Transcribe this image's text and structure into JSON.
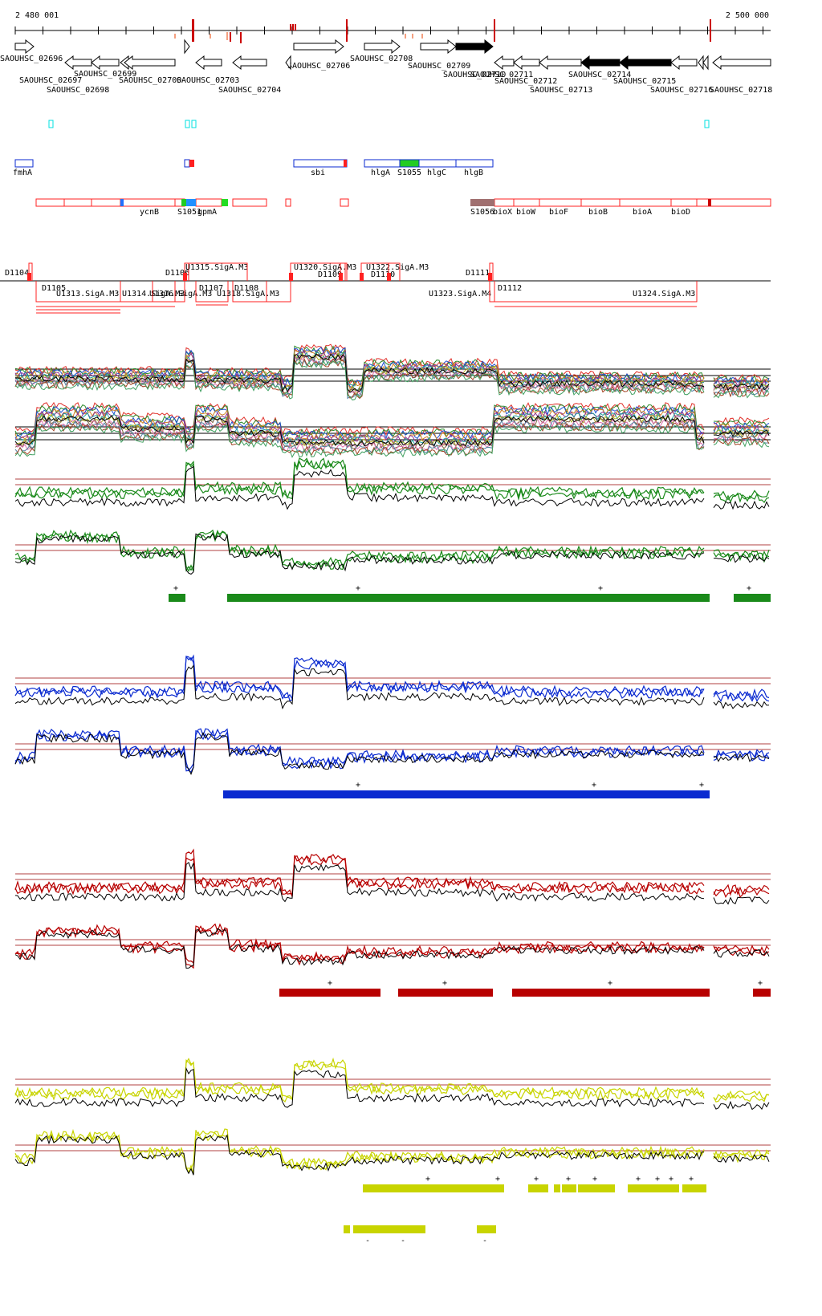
{
  "scale": {
    "start_label": "2 480 001",
    "end_label": "2 500 000"
  },
  "genes": [
    {
      "label": "SAOUHSC_02696",
      "strand": "+",
      "fill": "none"
    },
    {
      "label": "SAOUHSC_02697",
      "strand": "-",
      "fill": "none"
    },
    {
      "label": "SAOUHSC_02698",
      "strand": "-",
      "fill": "none"
    },
    {
      "label": "SAOUHSC_02699",
      "strand": "-",
      "fill": "none"
    },
    {
      "label": "SAOUHSC_02700",
      "strand": "-",
      "fill": "none"
    },
    {
      "label": "SAOUHSC_02703",
      "strand": "-",
      "fill": "none"
    },
    {
      "label": "SAOUHSC_02704",
      "strand": "-",
      "fill": "none"
    },
    {
      "label": "SAOUHSC_02706",
      "strand": "+",
      "fill": "none"
    },
    {
      "label": "SAOUHSC_02708",
      "strand": "+",
      "fill": "none"
    },
    {
      "label": "SAOUHSC_02709",
      "strand": "+",
      "fill": "none"
    },
    {
      "label": "SAOUHSC_02710",
      "strand": "+",
      "fill": "black"
    },
    {
      "label": "SAOUHSC_02711",
      "strand": "-",
      "fill": "none"
    },
    {
      "label": "SAOUHSC_02712",
      "strand": "-",
      "fill": "none"
    },
    {
      "label": "SAOUHSC_02713",
      "strand": "-",
      "fill": "none"
    },
    {
      "label": "SAOUHSC_02714",
      "strand": "-",
      "fill": "black"
    },
    {
      "label": "SAOUHSC_02715",
      "strand": "-",
      "fill": "black"
    },
    {
      "label": "SAOUHSC_02716",
      "strand": "-",
      "fill": "none"
    },
    {
      "label": "SAOUHSC_02718",
      "strand": "-",
      "fill": "none"
    }
  ],
  "blue_features": [
    {
      "label": "fmhA"
    },
    {
      "label": "sbi"
    },
    {
      "label": "hlgA"
    },
    {
      "label": "S1055"
    },
    {
      "label": "hlgC"
    },
    {
      "label": "hlgB"
    }
  ],
  "red_features": [
    {
      "label": "ycnB"
    },
    {
      "label": "S1051"
    },
    {
      "label": "gpmA"
    },
    {
      "label": "S1056"
    },
    {
      "label": "bioX"
    },
    {
      "label": "bioW"
    },
    {
      "label": "bioF"
    },
    {
      "label": "bioB"
    },
    {
      "label": "bioA"
    },
    {
      "label": "bioD"
    }
  ],
  "transcription_units_plus": [
    {
      "label": "D1104"
    },
    {
      "label": "D1106"
    },
    {
      "label": "U1315.SigA.M3"
    },
    {
      "label": "U1320.SigA.M3"
    },
    {
      "label": "D1109"
    },
    {
      "label": "U1322.SigA.M3"
    },
    {
      "label": "D1110"
    },
    {
      "label": "D1111"
    }
  ],
  "transcription_units_minus": [
    {
      "label": "D1105"
    },
    {
      "label": "U1313.SigA.M3"
    },
    {
      "label": "U1314.SigA.M3"
    },
    {
      "label": "U1316.SigA.M3"
    },
    {
      "label": "D1107"
    },
    {
      "label": "D1108"
    },
    {
      "label": "U1318.SigA.M3"
    },
    {
      "label": "U1323.SigA.M4"
    },
    {
      "label": "D1112"
    },
    {
      "label": "U1324.SigA.M3"
    }
  ],
  "colors": {
    "green": "#1a8a1a",
    "blue": "#0a2ad0",
    "red": "#b80000",
    "yellow": "#c8d400",
    "cyan": "#00e0e0",
    "feature_red": "#ff2020"
  },
  "track_markers": {
    "plus": "+",
    "minus": "-"
  }
}
